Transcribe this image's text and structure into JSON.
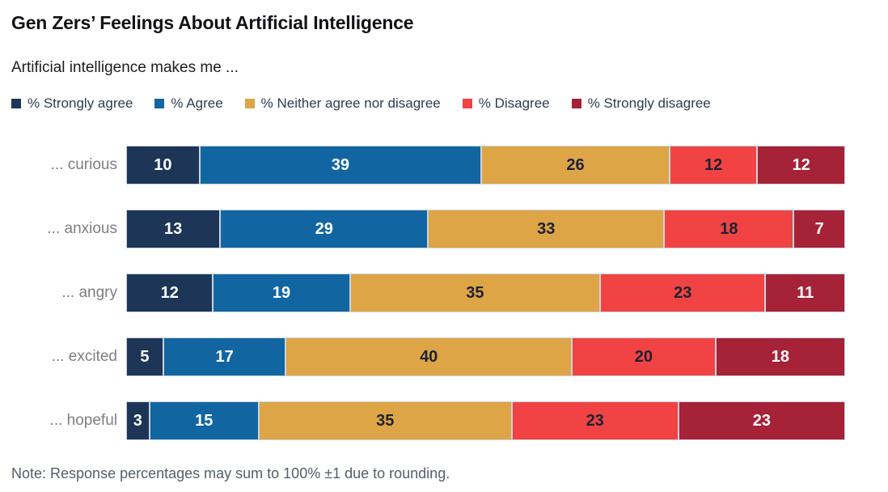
{
  "title": "Gen Zers’ Feelings About Artificial Intelligence",
  "subtitle": "Artificial intelligence makes me ...",
  "note": "Note: Response percentages may sum to 100% ±1 due to rounding.",
  "colors": {
    "strongly_agree": "#1d3557",
    "agree": "#1166a1",
    "neither": "#dda546",
    "disagree": "#f14343",
    "strongly_disagree": "#a52237",
    "segment_border": "#ccd3dd",
    "dark_label": "#1c2130",
    "light_label": "#ffffff",
    "row_label_gray": "#7e7e7e"
  },
  "chart_data": {
    "type": "bar",
    "variant": "horizontal-stacked",
    "title": "Gen Zers’ Feelings About Artificial Intelligence",
    "subtitle": "Artificial intelligence makes me ...",
    "legend_position": "top",
    "grid": false,
    "xlim": [
      0,
      100
    ],
    "unit": "%",
    "categories": [
      "... curious",
      "... anxious",
      "... angry",
      "... excited",
      "... hopeful"
    ],
    "series": [
      {
        "name": "% Strongly agree",
        "color": "#1d3557",
        "label_color": "#ffffff",
        "values": [
          10,
          13,
          12,
          5,
          3
        ]
      },
      {
        "name": "% Agree",
        "color": "#1166a1",
        "label_color": "#ffffff",
        "values": [
          39,
          29,
          19,
          17,
          15
        ]
      },
      {
        "name": "% Neither agree nor disagree",
        "color": "#dda546",
        "label_color": "#1c2130",
        "values": [
          26,
          33,
          35,
          40,
          35
        ]
      },
      {
        "name": "% Disagree",
        "color": "#f14343",
        "label_color": "#1c2130",
        "values": [
          12,
          18,
          23,
          20,
          23
        ]
      },
      {
        "name": "% Strongly disagree",
        "color": "#a52237",
        "label_color": "#ffffff",
        "values": [
          12,
          7,
          11,
          18,
          23
        ]
      }
    ],
    "note": "Note: Response percentages may sum to 100% ±1 due to rounding."
  }
}
